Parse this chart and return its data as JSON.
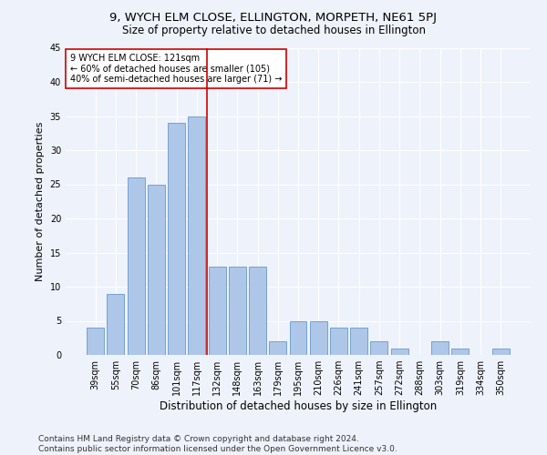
{
  "title1": "9, WYCH ELM CLOSE, ELLINGTON, MORPETH, NE61 5PJ",
  "title2": "Size of property relative to detached houses in Ellington",
  "xlabel": "Distribution of detached houses by size in Ellington",
  "ylabel": "Number of detached properties",
  "categories": [
    "39sqm",
    "55sqm",
    "70sqm",
    "86sqm",
    "101sqm",
    "117sqm",
    "132sqm",
    "148sqm",
    "163sqm",
    "179sqm",
    "195sqm",
    "210sqm",
    "226sqm",
    "241sqm",
    "257sqm",
    "272sqm",
    "288sqm",
    "303sqm",
    "319sqm",
    "334sqm",
    "350sqm"
  ],
  "values": [
    4,
    9,
    26,
    25,
    34,
    35,
    13,
    13,
    13,
    2,
    5,
    5,
    4,
    4,
    2,
    1,
    0,
    2,
    1,
    0,
    1
  ],
  "bar_color": "#aec6e8",
  "bar_edge_color": "#6699cc",
  "vline_x": 5.5,
  "vline_color": "#cc0000",
  "annotation_text": "9 WYCH ELM CLOSE: 121sqm\n← 60% of detached houses are smaller (105)\n40% of semi-detached houses are larger (71) →",
  "annotation_box_color": "#ffffff",
  "annotation_box_edge": "#cc0000",
  "ylim": [
    0,
    45
  ],
  "yticks": [
    0,
    5,
    10,
    15,
    20,
    25,
    30,
    35,
    40,
    45
  ],
  "background_color": "#eef2fb",
  "grid_color": "#ffffff",
  "footer_text": "Contains HM Land Registry data © Crown copyright and database right 2024.\nContains public sector information licensed under the Open Government Licence v3.0.",
  "title1_fontsize": 9.5,
  "title2_fontsize": 8.5,
  "xlabel_fontsize": 8.5,
  "ylabel_fontsize": 8,
  "tick_fontsize": 7,
  "annotation_fontsize": 7,
  "footer_fontsize": 6.5
}
